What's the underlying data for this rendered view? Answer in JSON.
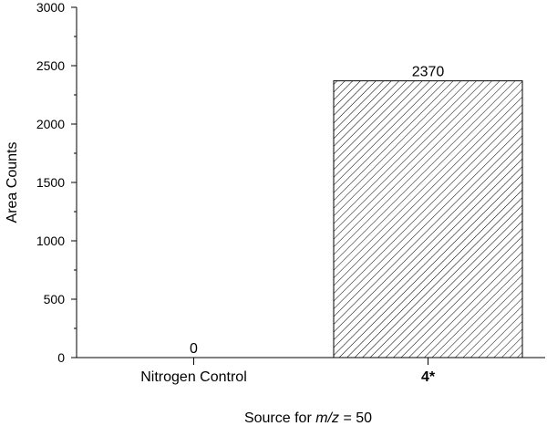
{
  "chart_data": {
    "type": "bar",
    "categories": [
      "Nitrogen Control",
      "4*"
    ],
    "values": [
      0,
      2370
    ],
    "data_labels": [
      "0",
      "2370"
    ],
    "ylabel": "Area Counts",
    "xlabel": {
      "prefix": "Source for ",
      "italic": "m/z",
      "suffix": " = 50"
    },
    "ylim": [
      0,
      3000
    ],
    "yticks": [
      0,
      500,
      1000,
      1500,
      2000,
      2500,
      3000
    ],
    "grid": false,
    "bar_fill": "hatched",
    "bar_color": "#000000"
  }
}
